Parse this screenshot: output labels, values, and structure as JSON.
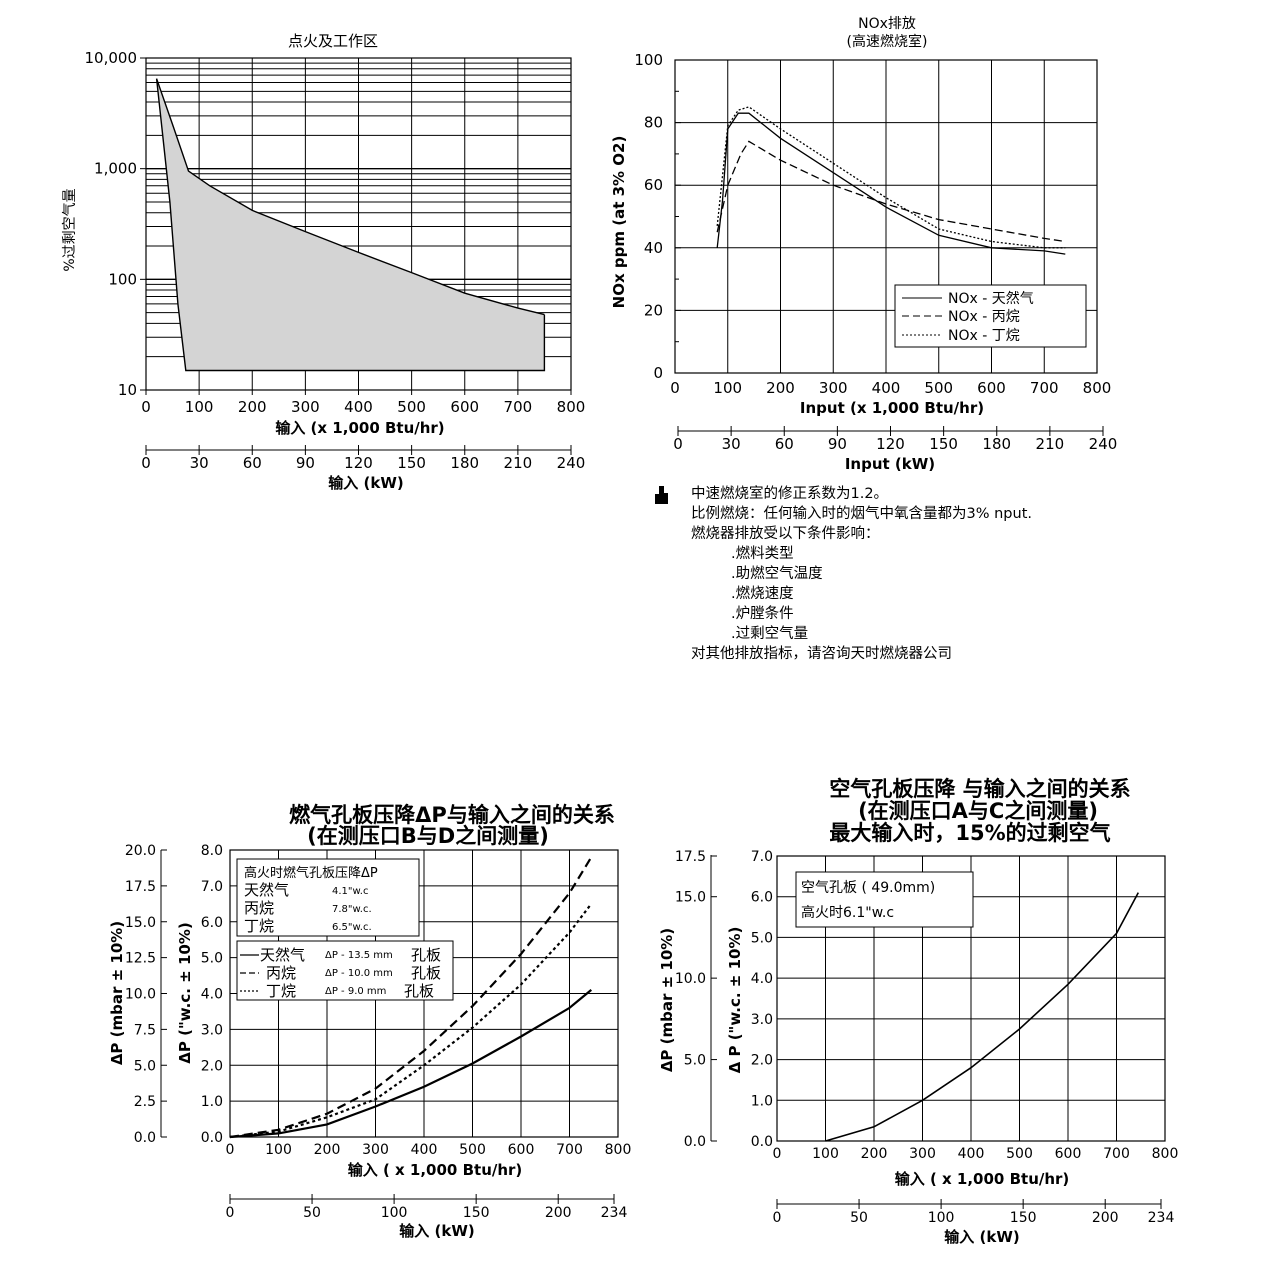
{
  "charts": {
    "c1": {
      "title": "点火及工作区",
      "ylabel": "%过剩空气量",
      "xlabel": "输入 (x 1,000 Btu/hr)",
      "x2label": "输入 (kW)",
      "xticks": [
        "0",
        "100",
        "200",
        "300",
        "400",
        "500",
        "600",
        "700",
        "800"
      ],
      "x2ticks": [
        "0",
        "30",
        "60",
        "90",
        "120",
        "150",
        "180",
        "210",
        "240"
      ],
      "yticks": [
        "10",
        "100",
        "1,000",
        "10,000"
      ]
    },
    "c2": {
      "title_line1": "NOx排放",
      "title_line2": "(高速燃烧室)",
      "ylabel": "NOx ppm (at 3% O2)",
      "xlabel": "Input (x 1,000 Btu/hr)",
      "x2label": "Input (kW)",
      "xticks": [
        "0",
        "100",
        "200",
        "300",
        "400",
        "500",
        "600",
        "700",
        "800"
      ],
      "x2ticks": [
        "0",
        "30",
        "60",
        "90",
        "120",
        "150",
        "180",
        "210",
        "240"
      ],
      "yticks": [
        "0",
        "20",
        "40",
        "60",
        "80",
        "100"
      ],
      "legend": [
        "NOx - 天然气",
        "NOx - 丙烷",
        "NOx - 丁烷"
      ]
    },
    "c3": {
      "title_line1": "燃气孔板压降ΔP与输入之间的关系",
      "title_line2": "(在测压口B与D之间测量)",
      "ylabel_left": "ΔP (mbar ± 10%)",
      "ylabel_inner": "ΔP (\"w.c. ± 10%)",
      "xlabel": "输入 ( x 1,000 Btu/hr)",
      "x2label": "输入 (kW)",
      "xticks": [
        "0",
        "100",
        "200",
        "300",
        "400",
        "500",
        "600",
        "700",
        "800"
      ],
      "x2ticks": [
        "0",
        "50",
        "100",
        "150",
        "200",
        "234"
      ],
      "yticks_mbar": [
        "0.0",
        "2.5",
        "5.0",
        "7.5",
        "10.0",
        "12.5",
        "15.0",
        "17.5",
        "20.0"
      ],
      "yticks_wc": [
        "0.0",
        "1.0",
        "2.0",
        "3.0",
        "4.0",
        "5.0",
        "6.0",
        "7.0",
        "8.0"
      ],
      "box_title": "高火时燃气孔板压降ΔP",
      "box_rows": [
        {
          "name": "天然气",
          "value": "4.1\"w.c"
        },
        {
          "name": "丙烷",
          "value": "7.8\"w.c."
        },
        {
          "name": "丁烷",
          "value": "6.5\"w.c."
        }
      ],
      "legend": [
        {
          "name": "天然气",
          "desc": "ΔP - 13.5 mm",
          "suffix": "孔板"
        },
        {
          "name": "丙烷",
          "desc": "ΔP - 10.0 mm",
          "suffix": "孔板"
        },
        {
          "name": "丁烷",
          "desc": "ΔP - 9.0 mm",
          "suffix": "孔板"
        }
      ]
    },
    "c4": {
      "title_line1": "空气孔板压降    与输入之间的关系",
      "title_line2": "(在测压口A与C之间测量)",
      "title_line3": "最大输入时，15%的过剩空气",
      "ylabel_left": "ΔP (mbar ± 10%)",
      "ylabel_inner": "Δ P (\"w.c. ± 10%)",
      "xlabel": "输入 ( x 1,000 Btu/hr)",
      "x2label": "输入 (kW)",
      "xticks": [
        "0",
        "100",
        "200",
        "300",
        "400",
        "500",
        "600",
        "700",
        "800"
      ],
      "x2ticks": [
        "0",
        "50",
        "100",
        "150",
        "200",
        "234"
      ],
      "yticks_mbar": [
        "0.0",
        "5.0",
        "10.0",
        "15.0",
        "17.5"
      ],
      "yticks_wc": [
        "0.0",
        "1.0",
        "2.0",
        "3.0",
        "4.0",
        "5.0",
        "6.0",
        "7.0"
      ],
      "box_line1": "空气孔板 ( 49.0mm)",
      "box_line2": "高火时6.1\"w.c"
    }
  },
  "chart_data": [
    {
      "type": "area",
      "title": "点火及工作区",
      "xlabel": "输入 (x 1,000 Btu/hr)",
      "ylabel": "%过剩空气量",
      "xlim": [
        0,
        800
      ],
      "ylim": [
        10,
        10000
      ],
      "yscale": "log",
      "grid": true,
      "series": [
        {
          "points": [
            [
              20,
              6500
            ],
            [
              50,
              2500
            ],
            [
              80,
              950
            ],
            [
              120,
              700
            ],
            [
              200,
              420
            ],
            [
              300,
              270
            ],
            [
              400,
              175
            ],
            [
              500,
              115
            ],
            [
              600,
              75
            ],
            [
              700,
              55
            ],
            [
              750,
              48
            ]
          ]
        },
        {
          "points": [
            [
              20,
              6500
            ],
            [
              45,
              500
            ],
            [
              60,
              60
            ],
            [
              75,
              15
            ],
            [
              750,
              15
            ],
            [
              750,
              48
            ]
          ]
        }
      ]
    },
    {
      "type": "line",
      "title": "NOx排放 (高速燃烧室)",
      "xlabel": "Input (x 1,000 Btu/hr)",
      "ylabel": "NOx ppm (at 3% O2)",
      "xlim": [
        0,
        800
      ],
      "ylim": [
        0,
        100
      ],
      "grid": true,
      "legend": "bottom-right",
      "series": [
        {
          "name": "NOx - 天然气",
          "style": "solid",
          "points": [
            [
              80,
              40
            ],
            [
              90,
              55
            ],
            [
              100,
              78
            ],
            [
              120,
              83
            ],
            [
              140,
              83
            ],
            [
              200,
              75
            ],
            [
              300,
              64
            ],
            [
              400,
              53
            ],
            [
              500,
              44
            ],
            [
              600,
              40
            ],
            [
              700,
              39
            ],
            [
              740,
              38
            ]
          ]
        },
        {
          "name": "NOx - 丙烷",
          "style": "dashed",
          "points": [
            [
              80,
              45
            ],
            [
              100,
              60
            ],
            [
              125,
              70
            ],
            [
              140,
              74
            ],
            [
              200,
              68
            ],
            [
              300,
              60
            ],
            [
              400,
              54
            ],
            [
              500,
              49
            ],
            [
              600,
              46
            ],
            [
              700,
              43
            ],
            [
              740,
              42
            ]
          ]
        },
        {
          "name": "NOx - 丁烷",
          "style": "dotted",
          "points": [
            [
              80,
              47
            ],
            [
              100,
              79
            ],
            [
              120,
              84
            ],
            [
              140,
              85
            ],
            [
              200,
              78
            ],
            [
              300,
              67
            ],
            [
              400,
              56
            ],
            [
              500,
              46
            ],
            [
              600,
              42
            ],
            [
              700,
              40
            ],
            [
              740,
              40
            ]
          ]
        }
      ]
    },
    {
      "type": "line",
      "title": "燃气孔板压降ΔP与输入之间的关系",
      "xlabel": "输入 ( x 1,000 Btu/hr)",
      "ylabel": "ΔP (\"w.c. ± 10%)",
      "xlim": [
        0,
        800
      ],
      "ylim": [
        0,
        8
      ],
      "grid": true,
      "series": [
        {
          "name": "天然气",
          "style": "solid",
          "points": [
            [
              0,
              0
            ],
            [
              100,
              0.1
            ],
            [
              200,
              0.35
            ],
            [
              300,
              0.85
            ],
            [
              400,
              1.4
            ],
            [
              500,
              2.05
            ],
            [
              600,
              2.8
            ],
            [
              700,
              3.6
            ],
            [
              745,
              4.1
            ]
          ]
        },
        {
          "name": "丙烷",
          "style": "dashed",
          "points": [
            [
              0,
              0
            ],
            [
              100,
              0.2
            ],
            [
              200,
              0.65
            ],
            [
              300,
              1.35
            ],
            [
              400,
              2.4
            ],
            [
              500,
              3.65
            ],
            [
              600,
              5.1
            ],
            [
              700,
              6.8
            ],
            [
              745,
              7.8
            ]
          ]
        },
        {
          "name": "丁烷",
          "style": "dotted",
          "points": [
            [
              0,
              0
            ],
            [
              100,
              0.15
            ],
            [
              200,
              0.55
            ],
            [
              300,
              1.05
            ],
            [
              400,
              2.0
            ],
            [
              500,
              3.05
            ],
            [
              600,
              4.25
            ],
            [
              700,
              5.7
            ],
            [
              745,
              6.5
            ]
          ]
        }
      ]
    },
    {
      "type": "line",
      "title": "空气孔板压降 与输入之间的关系",
      "xlabel": "输入 ( x 1,000 Btu/hr)",
      "ylabel": "Δ P (\"w.c. ± 10%)",
      "xlim": [
        0,
        800
      ],
      "ylim": [
        0,
        7
      ],
      "grid": true,
      "series": [
        {
          "name": "空气孔板 ( 49.0mm)",
          "style": "solid",
          "points": [
            [
              100,
              0
            ],
            [
              200,
              0.35
            ],
            [
              300,
              1.0
            ],
            [
              400,
              1.8
            ],
            [
              500,
              2.75
            ],
            [
              600,
              3.85
            ],
            [
              700,
              5.1
            ],
            [
              745,
              6.1
            ]
          ]
        }
      ]
    }
  ],
  "notes": {
    "lines": [
      "中速燃烧室的修正系数为1.2。",
      "比例燃烧：任何输入时的烟气中氧含量都为3% nput.",
      "燃烧器排放受以下条件影响：",
      ".燃料类型",
      ".助燃空气温度",
      ".燃烧速度",
      ".炉膛条件",
      ".过剩空气量",
      "对其他排放指标，请咨询天时燃烧器公司"
    ]
  }
}
